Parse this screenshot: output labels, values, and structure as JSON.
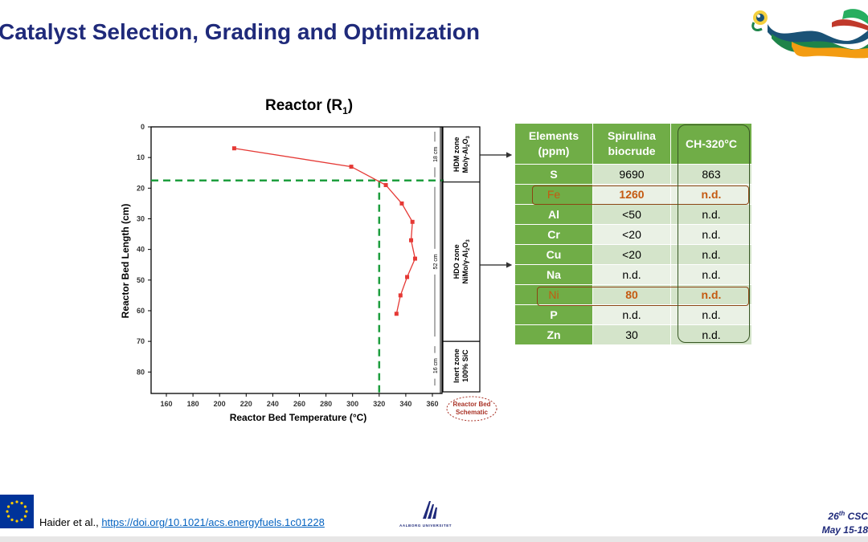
{
  "slide": {
    "title": "Catalyst Selection, Grading and Optimization",
    "citation_prefix": "Haider et al., ",
    "citation_link": "https://doi.org/10.1021/acs.energyfuels.1c01228",
    "conference_line1_num": "26",
    "conference_line1_sup": "th",
    "conference_line1_rest": " CSC",
    "conference_line2": "May 15-18",
    "university": "AALBORG UNIVERSITET"
  },
  "chart_data": {
    "type": "line",
    "title": "Reactor (R",
    "title_sub": "1",
    "title_end": ")",
    "xlabel": "Reactor Bed Temperature (°C)",
    "ylabel": "Reactor Bed Length (cm)",
    "xlim": [
      150,
      365
    ],
    "ylim": [
      0,
      87
    ],
    "y_inverted": true,
    "xticks": [
      160,
      180,
      200,
      220,
      240,
      260,
      280,
      300,
      320,
      340,
      360
    ],
    "yticks": [
      0,
      10,
      20,
      30,
      40,
      50,
      60,
      70,
      80
    ],
    "series": [
      {
        "color": "#e53935",
        "points": [
          {
            "x": 211,
            "y": 7
          },
          {
            "x": 299,
            "y": 13
          },
          {
            "x": 325,
            "y": 19
          },
          {
            "x": 337,
            "y": 25
          },
          {
            "x": 345,
            "y": 31
          },
          {
            "x": 344,
            "y": 37
          },
          {
            "x": 347,
            "y": 43
          },
          {
            "x": 341,
            "y": 49
          },
          {
            "x": 336,
            "y": 55
          },
          {
            "x": 333,
            "y": 61
          }
        ]
      }
    ],
    "reference_lines": [
      {
        "orientation": "vertical",
        "value": 320,
        "color": "#1e9e3e"
      },
      {
        "orientation": "horizontal",
        "value": 17.5,
        "color": "#1e9e3e"
      }
    ],
    "schematic": {
      "caption_line1": "Reactor Bed",
      "caption_line2": "Schematic",
      "zones": [
        {
          "from": 0,
          "to": 18,
          "length_label": "18 cm",
          "line1": "HDM zone",
          "line2": "Mo/γ-Al",
          "line2_sub1": "2",
          "line2_mid": "O",
          "line2_sub2": "3"
        },
        {
          "from": 18,
          "to": 70,
          "length_label": "52 cm",
          "line1": "HDO zone",
          "line2": "NiMo/γ-Al",
          "line2_sub1": "2",
          "line2_mid": "O",
          "line2_sub2": "3"
        },
        {
          "from": 70,
          "to": 86,
          "length_label": "16 cm",
          "line1": "Inert zone",
          "line2": "100% SiC",
          "line2_sub1": "",
          "line2_mid": "",
          "line2_sub2": ""
        }
      ]
    }
  },
  "table": {
    "headers": [
      "Elements\n(ppm)",
      "Spirulina\nbiocrude",
      "CH-320°C"
    ],
    "rows": [
      {
        "element": "S",
        "spirulina": "9690",
        "ch320": "863"
      },
      {
        "element": "Fe",
        "spirulina": "1260",
        "ch320": "n.d."
      },
      {
        "element": "Al",
        "spirulina": "<50",
        "ch320": "n.d."
      },
      {
        "element": "Cr",
        "spirulina": "<20",
        "ch320": "n.d."
      },
      {
        "element": "Cu",
        "spirulina": "<20",
        "ch320": "n.d."
      },
      {
        "element": "Na",
        "spirulina": "n.d.",
        "ch320": "n.d."
      },
      {
        "element": "Ni",
        "spirulina": "80",
        "ch320": "n.d."
      },
      {
        "element": "P",
        "spirulina": "n.d.",
        "ch320": "n.d."
      },
      {
        "element": "Zn",
        "spirulina": "30",
        "ch320": "n.d."
      }
    ],
    "highlighted_rows": [
      "Fe",
      "Ni"
    ],
    "colors": {
      "header": "#70ad47",
      "row_odd": "#d4e4ca",
      "row_even": "#eaf1e5",
      "highlight_text": "#c55a11"
    }
  }
}
